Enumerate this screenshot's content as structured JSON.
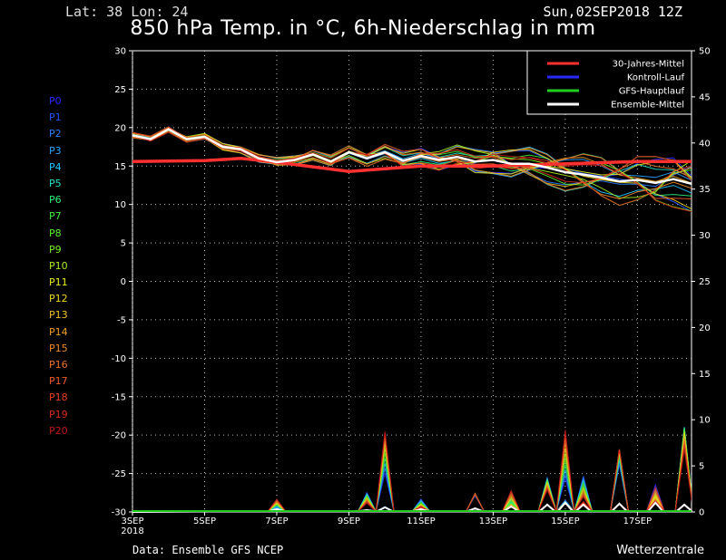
{
  "header": {
    "coords": "Lat: 38 Lon: 24",
    "datetime": "Sun,02SEP2018 12Z",
    "title": "850 hPa Temp. in °C, 6h-Niederschlag in mm"
  },
  "footer": {
    "source": "Data: Ensemble GFS NCEP",
    "brand": "Wetterzentrale"
  },
  "members": [
    {
      "label": "P0",
      "color": "#2a2aff"
    },
    {
      "label": "P1",
      "color": "#2255ff"
    },
    {
      "label": "P2",
      "color": "#2a7fff"
    },
    {
      "label": "P3",
      "color": "#2aa5ff"
    },
    {
      "label": "P4",
      "color": "#22c8ff"
    },
    {
      "label": "P5",
      "color": "#22e0c8"
    },
    {
      "label": "P6",
      "color": "#2af07a"
    },
    {
      "label": "P7",
      "color": "#3cf03c"
    },
    {
      "label": "P8",
      "color": "#5af02a"
    },
    {
      "label": "P9",
      "color": "#7af020"
    },
    {
      "label": "P10",
      "color": "#a8f020"
    },
    {
      "label": "P11",
      "color": "#e8f020"
    },
    {
      "label": "P12",
      "color": "#f0d820"
    },
    {
      "label": "P13",
      "color": "#f0c020"
    },
    {
      "label": "P14",
      "color": "#f0a020"
    },
    {
      "label": "P15",
      "color": "#f08a28"
    },
    {
      "label": "P16",
      "color": "#f07028"
    },
    {
      "label": "P17",
      "color": "#f05a28"
    },
    {
      "label": "P18",
      "color": "#e84020"
    },
    {
      "label": "P19",
      "color": "#d82a20"
    },
    {
      "label": "P20",
      "color": "#c01818"
    }
  ],
  "chart_data": {
    "type": "line",
    "x_days": [
      3,
      18.5
    ],
    "x_ticks": [
      {
        "day": 3,
        "label": "3SEP",
        "sublabel": "2018"
      },
      {
        "day": 5,
        "label": "5SEP"
      },
      {
        "day": 7,
        "label": "7SEP"
      },
      {
        "day": 9,
        "label": "9SEP"
      },
      {
        "day": 11,
        "label": "11SEP"
      },
      {
        "day": 13,
        "label": "13SEP"
      },
      {
        "day": 15,
        "label": "15SEP"
      },
      {
        "day": 17,
        "label": "17SEP"
      }
    ],
    "y_left": {
      "range": [
        -30,
        30
      ],
      "ticks": [
        30,
        25,
        20,
        15,
        10,
        5,
        0,
        -5,
        -10,
        -15,
        -20,
        -25,
        -30
      ]
    },
    "y_right": {
      "range": [
        0,
        50
      ],
      "ticks": [
        50,
        45,
        40,
        35,
        30,
        25,
        20,
        15,
        10,
        5,
        0
      ]
    },
    "grid": true,
    "legend": {
      "placement": "top-right",
      "entries": [
        {
          "name": "30-Jahres-Mittel",
          "color": "#ff3030"
        },
        {
          "name": "Kontroll-Lauf",
          "color": "#2a2aff"
        },
        {
          "name": "GFS-Hauptlauf",
          "color": "#20d020"
        },
        {
          "name": "Ensemble-Mittel",
          "color": "#ffffff"
        }
      ]
    },
    "climate_mean": {
      "x": [
        3,
        5,
        6,
        7,
        9,
        11,
        13,
        15,
        17,
        18.5
      ],
      "y": [
        15.6,
        15.7,
        16.0,
        15.5,
        14.3,
        15.0,
        15.0,
        15.3,
        15.6,
        15.6
      ]
    },
    "ensemble_mean": {
      "x": [
        3,
        3.5,
        4,
        4.5,
        5,
        5.5,
        6,
        6.5,
        7,
        7.5,
        8,
        8.5,
        9,
        9.5,
        10,
        10.5,
        11,
        11.5,
        12,
        12.5,
        13,
        13.5,
        14,
        14.5,
        15,
        15.5,
        16,
        16.5,
        17,
        17.5,
        18,
        18.5
      ],
      "y": [
        19.0,
        18.5,
        19.8,
        18.5,
        18.8,
        17.5,
        17.2,
        16.0,
        15.5,
        15.8,
        16.5,
        15.6,
        16.8,
        16.0,
        16.8,
        15.7,
        16.3,
        15.8,
        16.2,
        15.6,
        15.8,
        15.3,
        15.3,
        14.8,
        14.2,
        13.9,
        13.5,
        13.0,
        13.2,
        12.8,
        13.3,
        12.7
      ]
    },
    "precip_mm": {
      "x": [
        7,
        9.5,
        10,
        11,
        12.5,
        13.5,
        14.5,
        15,
        15.5,
        16.5,
        17.5,
        18.3
      ],
      "max": [
        2.0,
        2.2,
        9.0,
        2.2,
        2.0,
        4.3,
        3.7,
        10.0,
        5.0,
        6.8,
        6.4,
        9.2
      ],
      "mean": [
        0.3,
        0.2,
        0.5,
        0.3,
        0.4,
        0.6,
        0.8,
        1.0,
        0.8,
        0.9,
        1.0,
        0.8
      ]
    }
  }
}
